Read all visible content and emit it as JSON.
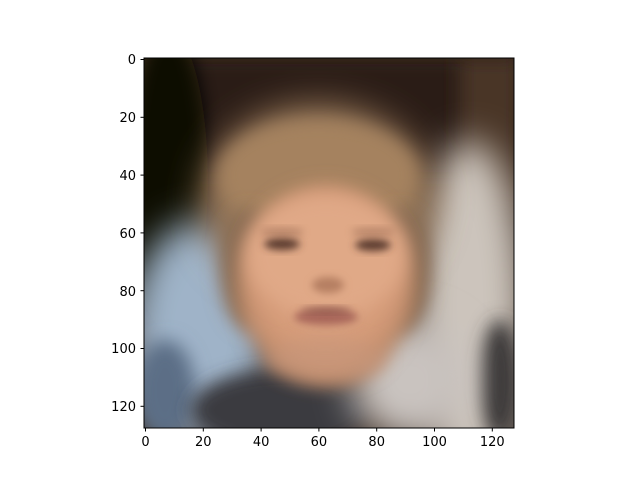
{
  "figure": {
    "image_description": "blurred reconstructed face, 128x128 pixel image shown with matplotlib imshow",
    "image_size": [
      128,
      128
    ]
  },
  "axes": {
    "x_ticks": [
      "0",
      "20",
      "40",
      "60",
      "80",
      "100",
      "120"
    ],
    "y_ticks": [
      "0",
      "20",
      "40",
      "60",
      "80",
      "100",
      "120"
    ],
    "x_range": [
      -0.5,
      127.5
    ],
    "y_range": [
      -0.5,
      127.5
    ],
    "y_inverted": true
  },
  "colors": {
    "background_top": "#2b1d14",
    "hair": "#9a7a5c",
    "skin": "#d9a07e",
    "dark_left": "#0a0706",
    "blue_shoulder": "#9fb3c8",
    "light_right": "#ccc4bc",
    "dark_bottom": "#3a3a40"
  }
}
